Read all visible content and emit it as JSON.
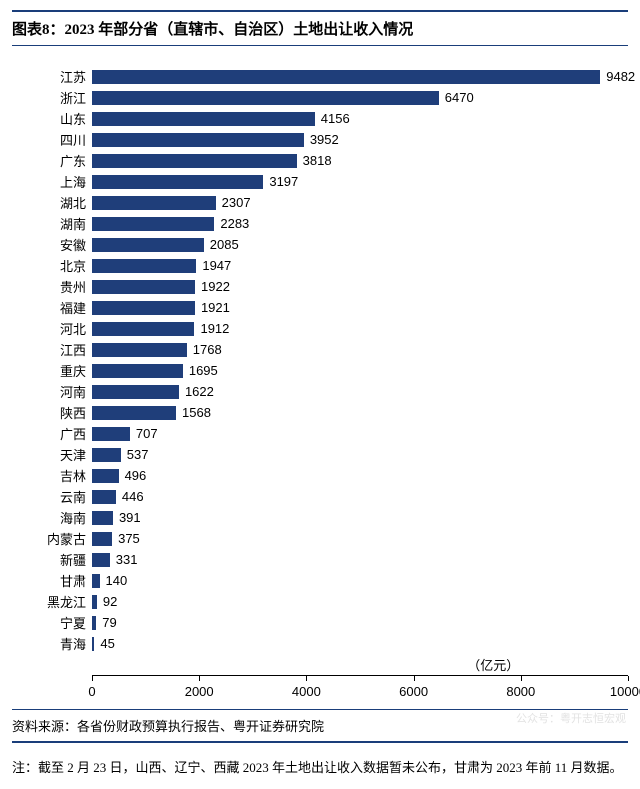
{
  "title": "图表8：2023 年部分省（直辖市、自治区）土地出让收入情况",
  "chart": {
    "type": "bar-horizontal",
    "xlim": [
      0,
      10000
    ],
    "xtick_step": 2000,
    "xticks": [
      0,
      2000,
      4000,
      6000,
      8000,
      10000
    ],
    "bar_color": "#1f3e7a",
    "background_color": "#ffffff",
    "label_fontsize": 13,
    "value_fontsize": 13,
    "unit_label": "（亿元）",
    "categories": [
      "江苏",
      "浙江",
      "山东",
      "四川",
      "广东",
      "上海",
      "湖北",
      "湖南",
      "安徽",
      "北京",
      "贵州",
      "福建",
      "河北",
      "江西",
      "重庆",
      "河南",
      "陕西",
      "广西",
      "天津",
      "吉林",
      "云南",
      "海南",
      "内蒙古",
      "新疆",
      "甘肃",
      "黑龙江",
      "宁夏",
      "青海"
    ],
    "values": [
      9482,
      6470,
      4156,
      3952,
      3818,
      3197,
      2307,
      2283,
      2085,
      1947,
      1922,
      1921,
      1912,
      1768,
      1695,
      1622,
      1568,
      707,
      537,
      496,
      446,
      391,
      375,
      331,
      140,
      92,
      79,
      45
    ]
  },
  "source": "资料来源：各省份财政预算执行报告、粤开证券研究院",
  "note": "注：截至 2 月 23 日，山西、辽宁、西藏 2023 年土地出让收入数据暂未公布，甘肃为 2023 年前 11 月数据。",
  "watermark": "公众号：粤开志恒宏观"
}
